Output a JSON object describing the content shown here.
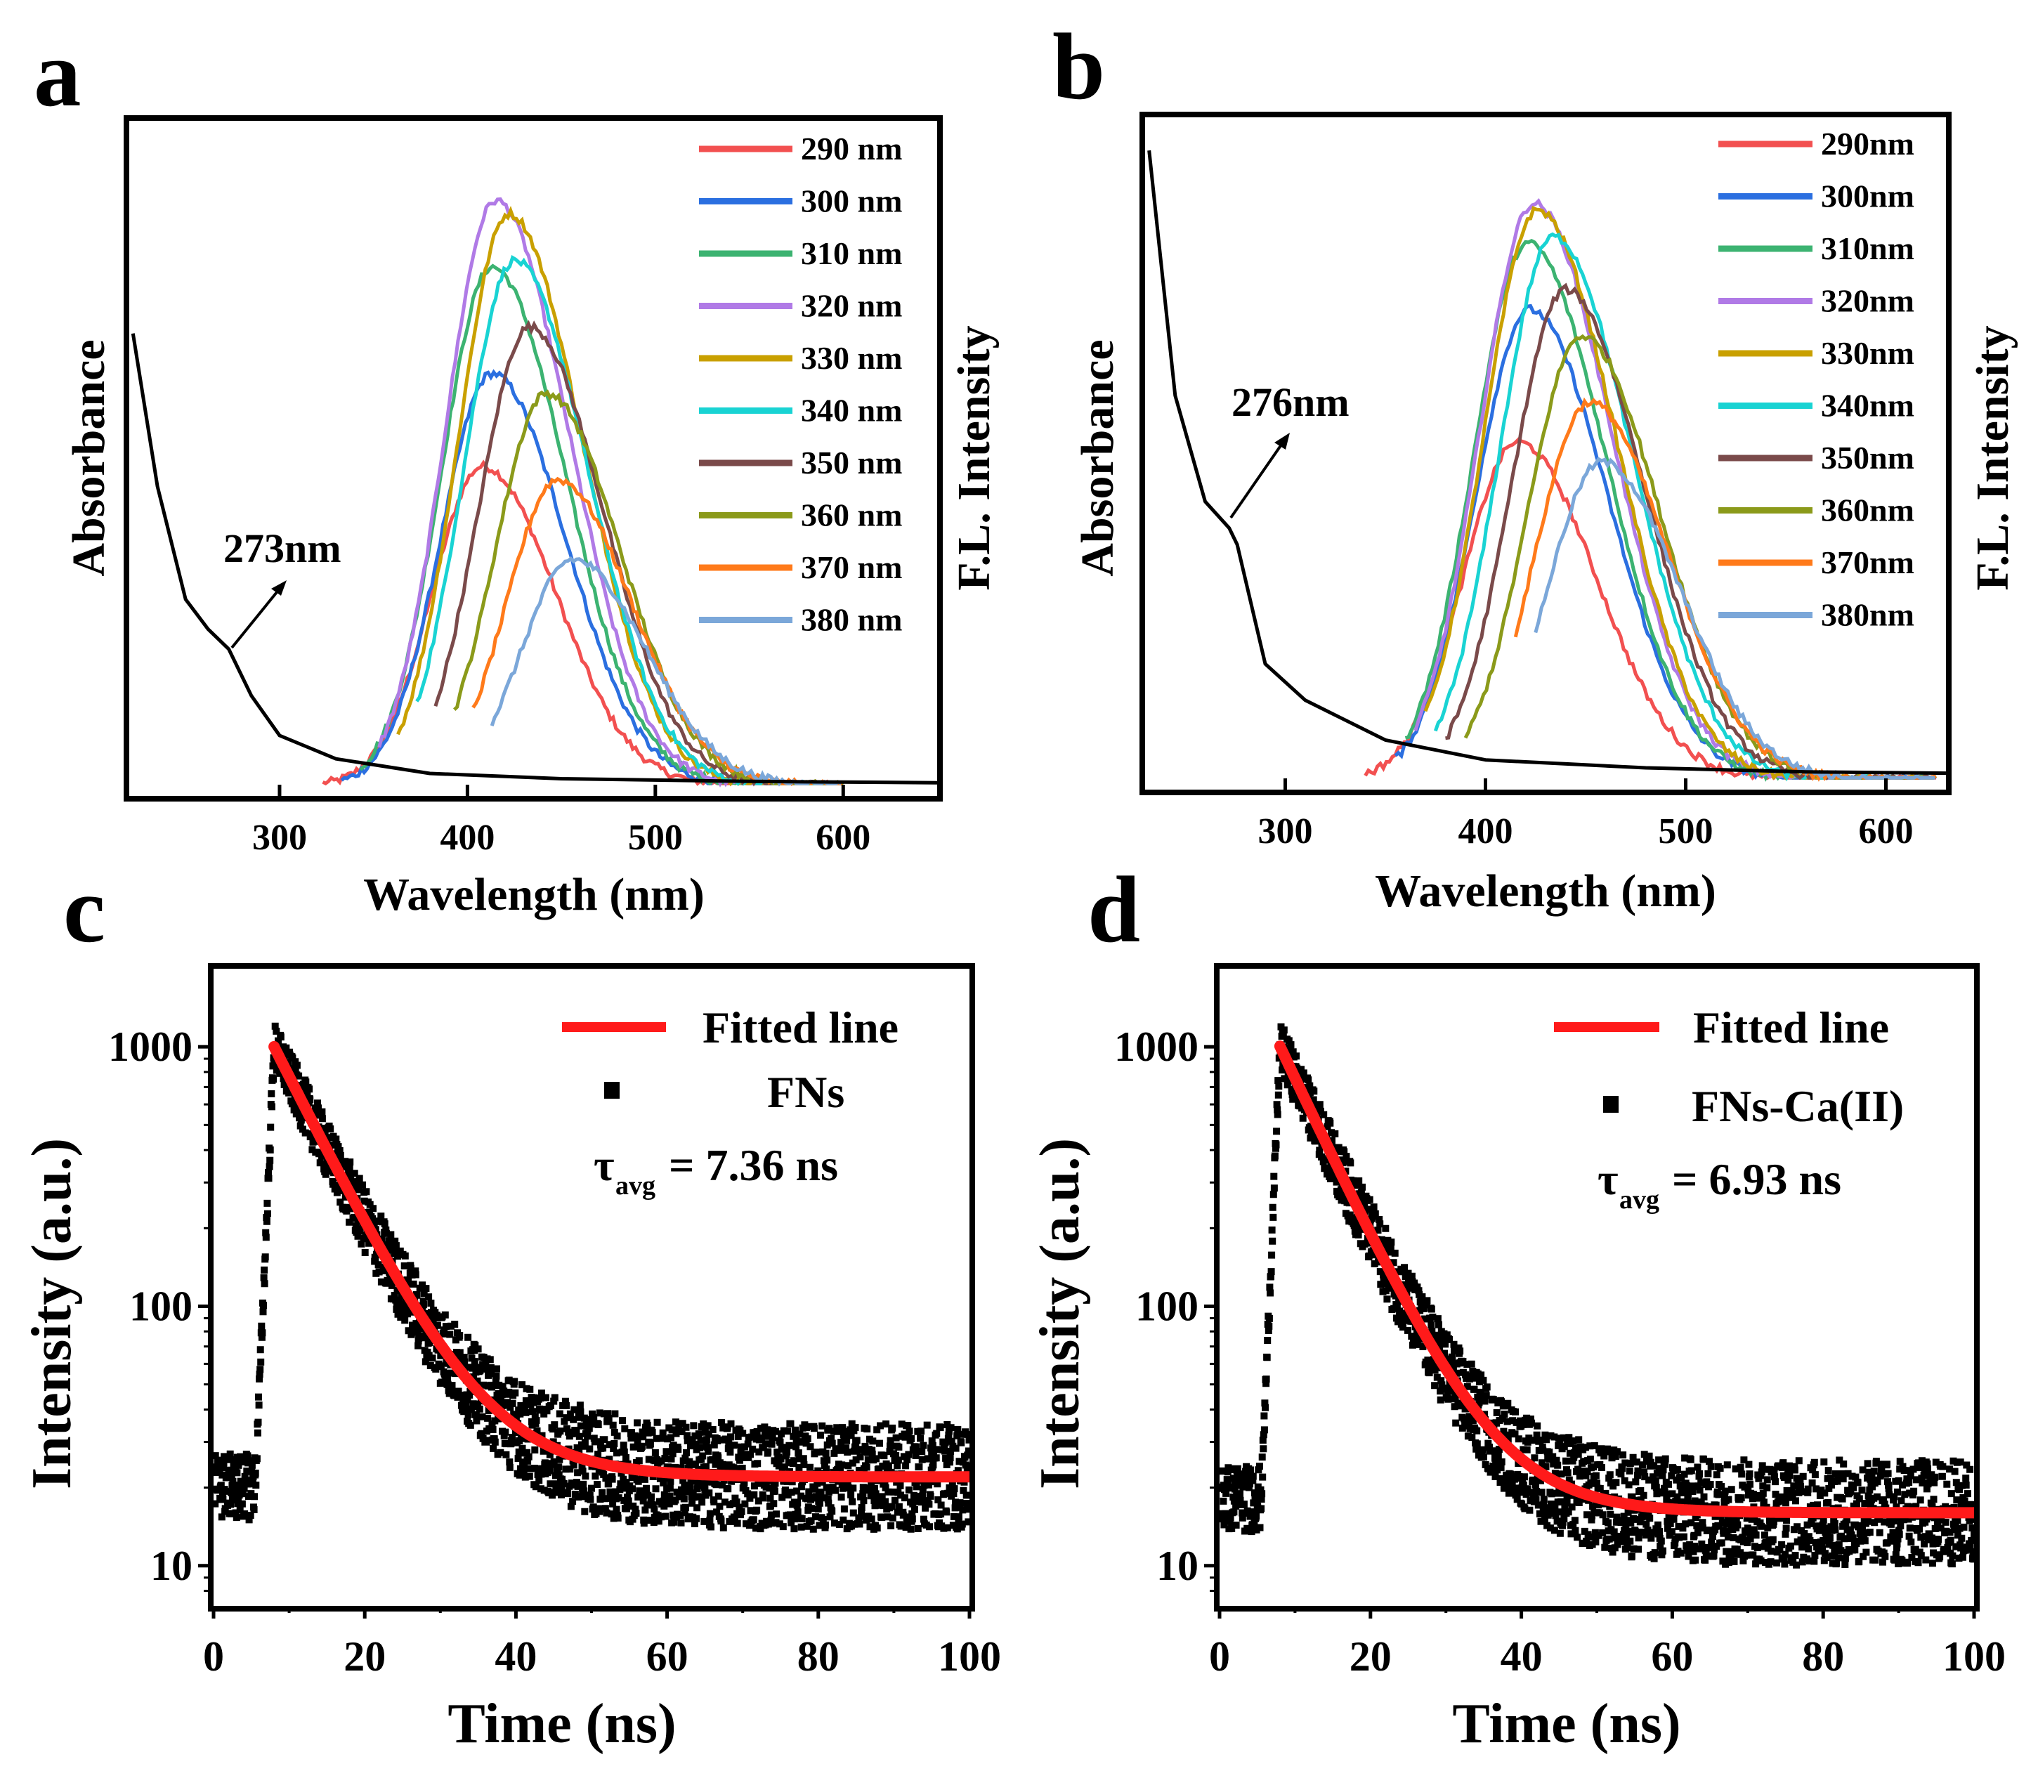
{
  "panels": {
    "a": {
      "letter": "a",
      "annotation": "273nm",
      "xlabel": "Wavelength (nm)",
      "ylabel_left": "Absorbance",
      "ylabel_right": "F.L. Intensity",
      "xticks": [
        "300",
        "400",
        "500",
        "600"
      ]
    },
    "b": {
      "letter": "b",
      "annotation": "276nm",
      "xlabel": "Wavelength (nm)",
      "ylabel_left": "Absorbance",
      "ylabel_right": "F.L. Intensity",
      "xticks": [
        "300",
        "400",
        "500",
        "600"
      ]
    },
    "c": {
      "letter": "c",
      "xlabel": "Time (ns)",
      "ylabel": "Intensity (a.u.)",
      "legend_fit": "Fitted line",
      "legend_data": "FNs",
      "tau_prefix": "τ",
      "tau_sub": "avg",
      "tau_value": "= 7.36 ns",
      "xticks": [
        "0",
        "20",
        "40",
        "60",
        "80",
        "100"
      ],
      "yticks": [
        "10",
        "100",
        "1000"
      ]
    },
    "d": {
      "letter": "d",
      "xlabel": "Time (ns)",
      "ylabel": "Intensity (a.u.)",
      "legend_fit": "Fitted line",
      "legend_data": "FNs-Ca(II)",
      "tau_prefix": "τ",
      "tau_sub": "avg",
      "tau_value": "= 6.93 ns",
      "xticks": [
        "0",
        "20",
        "40",
        "60",
        "80",
        "100"
      ],
      "yticks": [
        "10",
        "100",
        "1000"
      ]
    }
  },
  "chart_data": [
    {
      "panel": "a",
      "type": "line",
      "xlabel": "Wavelength (nm)",
      "ylabel": "Absorbance",
      "y2label": "F.L. Intensity",
      "xlim": [
        220,
        650
      ],
      "ylim": [
        0,
        1
      ],
      "absorbance": {
        "x": [
          222,
          235,
          250,
          262,
          273,
          285,
          300,
          330,
          380,
          450,
          550,
          650
        ],
        "y": [
          0.68,
          0.45,
          0.28,
          0.235,
          0.205,
          0.135,
          0.075,
          0.04,
          0.018,
          0.01,
          0.006,
          0.004
        ],
        "peak_annotation_nm": 273
      },
      "emission_series": [
        {
          "name": "290 nm",
          "color": "#f25050",
          "x_start": 323,
          "x_end": 600,
          "peak_x": 408,
          "peak_y": 0.48
        },
        {
          "name": "300 nm",
          "color": "#2b6fe0",
          "x_start": 333,
          "x_end": 600,
          "peak_x": 413,
          "peak_y": 0.62
        },
        {
          "name": "310 nm",
          "color": "#3cb371",
          "x_start": 343,
          "x_end": 600,
          "peak_x": 413,
          "peak_y": 0.78
        },
        {
          "name": "320 nm",
          "color": "#b07ae6",
          "x_start": 353,
          "x_end": 600,
          "peak_x": 415,
          "peak_y": 0.88
        },
        {
          "name": "330 nm",
          "color": "#c9a000",
          "x_start": 363,
          "x_end": 600,
          "peak_x": 422,
          "peak_y": 0.86
        },
        {
          "name": "340 nm",
          "color": "#19d3d3",
          "x_start": 373,
          "x_end": 600,
          "peak_x": 425,
          "peak_y": 0.79
        },
        {
          "name": "350 nm",
          "color": "#7a4a4a",
          "x_start": 383,
          "x_end": 600,
          "peak_x": 433,
          "peak_y": 0.69
        },
        {
          "name": "360 nm",
          "color": "#8b9a1a",
          "x_start": 393,
          "x_end": 600,
          "peak_x": 442,
          "peak_y": 0.59
        },
        {
          "name": "370 nm",
          "color": "#ff7a1a",
          "x_start": 403,
          "x_end": 600,
          "peak_x": 448,
          "peak_y": 0.46
        },
        {
          "name": "380 nm",
          "color": "#7ba7d9",
          "x_start": 413,
          "x_end": 600,
          "peak_x": 456,
          "peak_y": 0.34
        }
      ]
    },
    {
      "panel": "b",
      "type": "line",
      "xlabel": "Wavelength (nm)",
      "ylabel": "Absorbance",
      "y2label": "F.L. Intensity",
      "xlim": [
        230,
        630
      ],
      "ylim": [
        0,
        1
      ],
      "absorbance": {
        "x": [
          232,
          245,
          260,
          272,
          276,
          290,
          310,
          350,
          400,
          480,
          560,
          630
        ],
        "y": [
          0.95,
          0.58,
          0.42,
          0.38,
          0.355,
          0.175,
          0.12,
          0.06,
          0.03,
          0.018,
          0.012,
          0.01
        ],
        "peak_annotation_nm": 276
      },
      "emission_series": [
        {
          "name": "290nm",
          "color": "#f25050",
          "x_start": 340,
          "x_end": 625,
          "peak_x": 416,
          "peak_y": 0.51
        },
        {
          "name": "300nm",
          "color": "#2b6fe0",
          "x_start": 355,
          "x_end": 625,
          "peak_x": 422,
          "peak_y": 0.71
        },
        {
          "name": "310nm",
          "color": "#3cb371",
          "x_start": 360,
          "x_end": 625,
          "peak_x": 421,
          "peak_y": 0.81
        },
        {
          "name": "320nm",
          "color": "#b07ae6",
          "x_start": 365,
          "x_end": 625,
          "peak_x": 424,
          "peak_y": 0.87
        },
        {
          "name": "330nm",
          "color": "#c9a000",
          "x_start": 370,
          "x_end": 625,
          "peak_x": 426,
          "peak_y": 0.86
        },
        {
          "name": "340nm",
          "color": "#19d3d3",
          "x_start": 375,
          "x_end": 625,
          "peak_x": 434,
          "peak_y": 0.82
        },
        {
          "name": "350nm",
          "color": "#7a4a4a",
          "x_start": 380,
          "x_end": 625,
          "peak_x": 440,
          "peak_y": 0.74
        },
        {
          "name": "360nm",
          "color": "#8b9a1a",
          "x_start": 390,
          "x_end": 625,
          "peak_x": 448,
          "peak_y": 0.67
        },
        {
          "name": "370nm",
          "color": "#ff7a1a",
          "x_start": 415,
          "x_end": 625,
          "peak_x": 452,
          "peak_y": 0.57
        },
        {
          "name": "380nm",
          "color": "#7ba7d9",
          "x_start": 425,
          "x_end": 625,
          "peak_x": 458,
          "peak_y": 0.48
        }
      ]
    },
    {
      "panel": "c",
      "type": "scatter",
      "yscale": "log",
      "xlabel": "Time (ns)",
      "ylabel": "Intensity (a.u.)",
      "xlim": [
        0,
        100
      ],
      "ylim": [
        7,
        2000
      ],
      "series": [
        {
          "name": "FNs",
          "kind": "scatter",
          "color": "#000000",
          "baseline": 20,
          "rise_start_ns": 5.5,
          "peak_ns": 8,
          "peak": 1000
        },
        {
          "name": "Fitted line",
          "kind": "fit",
          "color": "#ff1a1a",
          "t0": 8,
          "amplitude": 980,
          "tau_ns": 7.36,
          "offset": 22
        }
      ],
      "tau_avg_ns": 7.36
    },
    {
      "panel": "d",
      "type": "scatter",
      "yscale": "log",
      "xlabel": "Time (ns)",
      "ylabel": "Intensity (a.u.)",
      "xlim": [
        0,
        100
      ],
      "ylim": [
        7,
        2000
      ],
      "series": [
        {
          "name": "FNs-Ca(II)",
          "kind": "scatter",
          "color": "#000000",
          "baseline": 18,
          "rise_start_ns": 5.5,
          "peak_ns": 8,
          "peak": 1000
        },
        {
          "name": "Fitted line",
          "kind": "fit",
          "color": "#ff1a1a",
          "t0": 8,
          "amplitude": 990,
          "tau_ns": 6.93,
          "offset": 16
        }
      ],
      "tau_avg_ns": 6.93
    }
  ]
}
